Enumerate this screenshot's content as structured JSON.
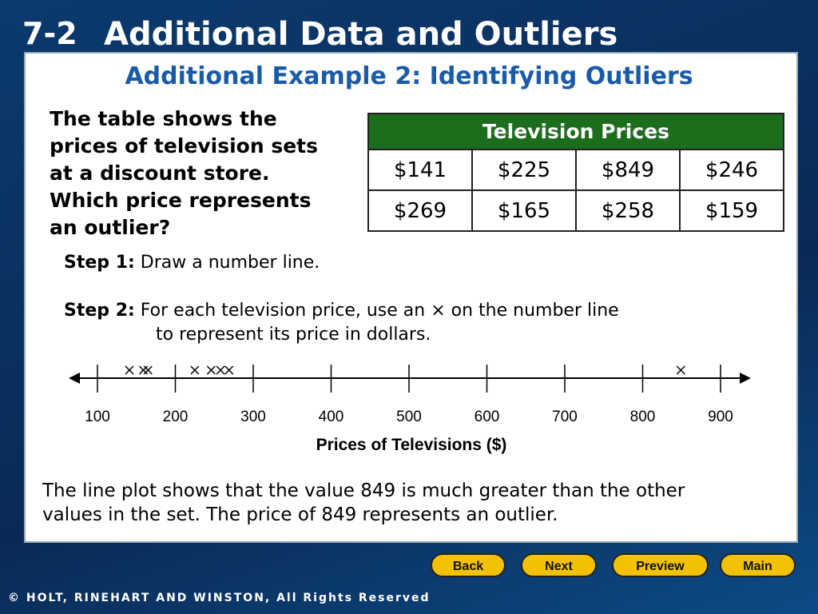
{
  "header": {
    "lesson": "7-2",
    "title": "Additional Data and Outliers"
  },
  "subtitle": "Additional Example 2: Identifying Outliers",
  "question": [
    "The table shows the",
    "prices of television sets",
    "at a discount store.",
    "Which price represents",
    "an outlier?"
  ],
  "table": {
    "title": "Television Prices",
    "rows": [
      [
        "$141",
        "$225",
        "$849",
        "$246"
      ],
      [
        "$269",
        "$165",
        "$258",
        "$159"
      ]
    ]
  },
  "steps": [
    {
      "label": "Step 1:",
      "text": [
        "Draw a number line."
      ]
    },
    {
      "label": "Step 2:",
      "text": [
        "For each television price, use an × on the number line",
        "to represent its price in dollars."
      ]
    }
  ],
  "number_line": {
    "ticks": [
      100,
      200,
      300,
      400,
      500,
      600,
      700,
      800,
      900
    ],
    "xlim": [
      100,
      900
    ],
    "values": [
      141,
      225,
      849,
      246,
      269,
      165,
      258,
      159
    ],
    "xlabel": "Prices of Televisions ($)"
  },
  "conclusion": [
    "The line plot shows that the value 849 is much greater than the other",
    "values in the set. The price of 849 represents an outlier."
  ],
  "buttons": [
    "Back",
    "Next",
    "Preview",
    "Main"
  ],
  "footer": "© HOLT, RINEHART AND WINSTON, All Rights Reserved"
}
